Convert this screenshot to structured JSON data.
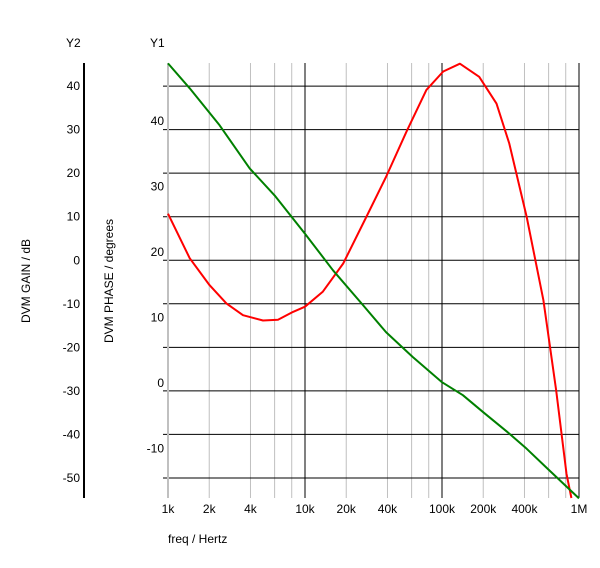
{
  "chart_data": {
    "type": "line",
    "title": "",
    "xlabel": "freq / Hertz",
    "x_scale": "log",
    "xlim": [
      1000,
      1000000
    ],
    "x_ticks": [
      {
        "value": 1000,
        "label": "1k"
      },
      {
        "value": 2000,
        "label": "2k"
      },
      {
        "value": 4000,
        "label": "4k"
      },
      {
        "value": 10000,
        "label": "10k"
      },
      {
        "value": 20000,
        "label": "20k"
      },
      {
        "value": 40000,
        "label": "40k"
      },
      {
        "value": 100000,
        "label": "100k"
      },
      {
        "value": 200000,
        "label": "200k"
      },
      {
        "value": 400000,
        "label": "400k"
      },
      {
        "value": 1000000,
        "label": "1M"
      }
    ],
    "y1": {
      "name": "Y1",
      "label": "DVM PHASE / degrees",
      "ylim": [
        -16.3,
        50.1
      ],
      "ticks": [
        40,
        30,
        20,
        10,
        0,
        -10
      ]
    },
    "y2": {
      "name": "Y2",
      "label": "DVM GAIN / dB",
      "ylim": [
        -54.6,
        45.3
      ],
      "ticks": [
        40,
        30,
        20,
        10,
        0,
        -10,
        -20,
        -30,
        -40,
        -50
      ]
    },
    "grid": true,
    "series": [
      {
        "axis": "y1",
        "color": "#ff0000",
        "x": [
          1000,
          1440,
          2010,
          2670,
          3530,
          4940,
          6350,
          8170,
          10000,
          13500,
          19000,
          28000,
          39000,
          55000,
          77000,
          102000,
          135000,
          187000,
          250000,
          310000,
          415000,
          550000,
          680000,
          810000,
          880000
        ],
        "y": [
          27.1,
          20.3,
          16.2,
          13.4,
          11.6,
          10.8,
          10.9,
          12.1,
          12.9,
          15.2,
          19.5,
          26.6,
          32.7,
          39.6,
          46.0,
          48.8,
          50.0,
          48.0,
          43.9,
          37.8,
          26.6,
          13.9,
          0.2,
          -12.6,
          -16.3
        ]
      },
      {
        "axis": "y2",
        "color": "#008000",
        "x": [
          1000,
          1440,
          2380,
          3950,
          6000,
          10000,
          16000,
          26500,
          39000,
          61000,
          100000,
          142000,
          200000,
          310000,
          415000,
          610000,
          1000000
        ],
        "y": [
          45.2,
          39.5,
          31.0,
          21.1,
          14.9,
          6.1,
          -2.3,
          -10.3,
          -16.5,
          -22.2,
          -28.0,
          -31.0,
          -34.9,
          -39.8,
          -43.3,
          -48.3,
          -54.7
        ]
      }
    ]
  }
}
